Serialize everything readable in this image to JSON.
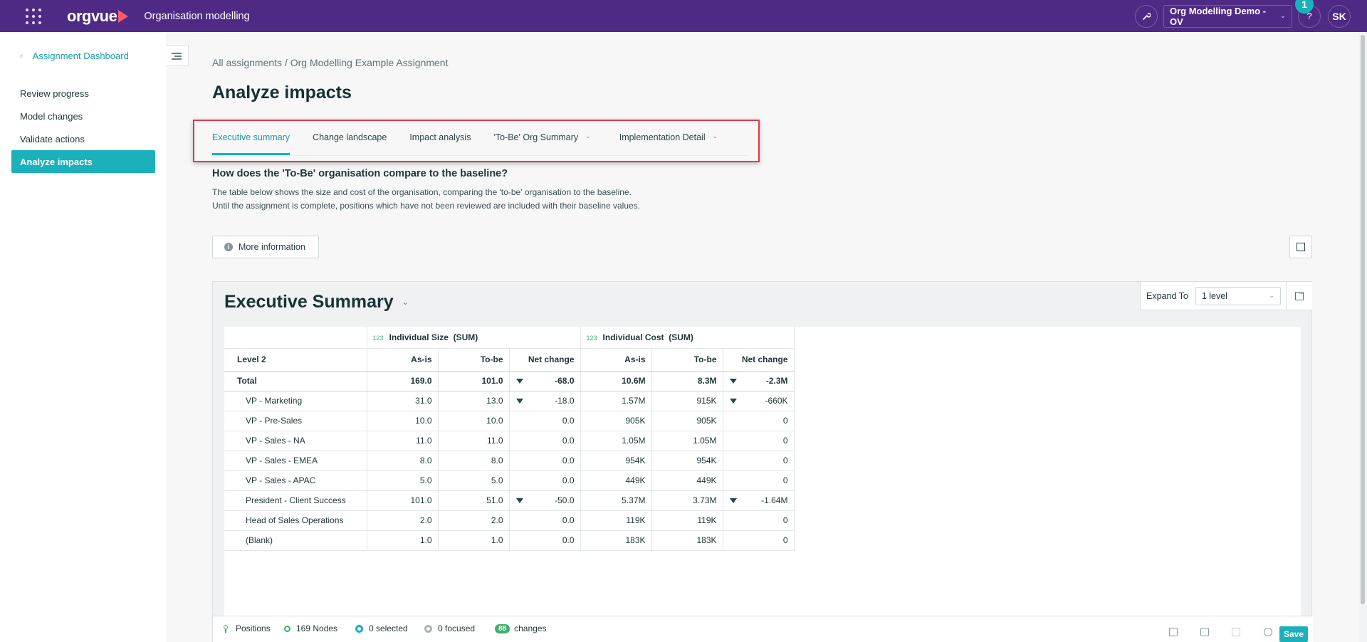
{
  "topbar": {
    "logo": "orgvue",
    "app_title": "Organisation modelling",
    "workspace": "Org Modelling Demo - OV",
    "notification_count": "1",
    "help": "?",
    "user_initials": "SK"
  },
  "sidebar": {
    "back_label": "Assignment Dashboard",
    "items": [
      {
        "label": "Review progress"
      },
      {
        "label": "Model changes"
      },
      {
        "label": "Validate actions"
      },
      {
        "label": "Analyze impacts"
      }
    ]
  },
  "main": {
    "breadcrumb": "All assignments / Org Modelling Example Assignment",
    "title": "Analyze impacts",
    "tabs": [
      {
        "label": "Executive summary"
      },
      {
        "label": "Change landscape"
      },
      {
        "label": "Impact analysis"
      },
      {
        "label": "'To-Be' Org Summary"
      },
      {
        "label": "Implementation Detail"
      }
    ],
    "question": "How does the 'To-Be' organisation compare to the baseline?",
    "desc_line1": "The table below shows the size and cost of the organisation, comparing the 'to-be' organisation to the baseline.",
    "desc_line2": "Until the assignment is complete, positions which have not been reviewed are included with their baseline values.",
    "more_info": "More information"
  },
  "summary": {
    "title": "Executive Summary",
    "expand_label": "Expand To",
    "expand_value": "1 level",
    "group_badge": "123",
    "group1": "Individual Size",
    "group2": "Individual Cost",
    "agg": "(SUM)",
    "row_header": "Level 2",
    "col_asis": "As-is",
    "col_tobe": "To-be",
    "col_net": "Net change",
    "rows": [
      {
        "name": "Total",
        "size_asis": "169.0",
        "size_tobe": "101.0",
        "size_net": "-68.0",
        "cost_asis": "10.6M",
        "cost_tobe": "8.3M",
        "cost_net": "-2.3M"
      },
      {
        "name": "VP - Marketing",
        "size_asis": "31.0",
        "size_tobe": "13.0",
        "size_net": "-18.0",
        "cost_asis": "1.57M",
        "cost_tobe": "915K",
        "cost_net": "-660K"
      },
      {
        "name": "VP - Pre-Sales",
        "size_asis": "10.0",
        "size_tobe": "10.0",
        "size_net": "0.0",
        "cost_asis": "905K",
        "cost_tobe": "905K",
        "cost_net": "0"
      },
      {
        "name": "VP - Sales - NA",
        "size_asis": "11.0",
        "size_tobe": "11.0",
        "size_net": "0.0",
        "cost_asis": "1.05M",
        "cost_tobe": "1.05M",
        "cost_net": "0"
      },
      {
        "name": "VP - Sales - EMEA",
        "size_asis": "8.0",
        "size_tobe": "8.0",
        "size_net": "0.0",
        "cost_asis": "954K",
        "cost_tobe": "954K",
        "cost_net": "0"
      },
      {
        "name": "VP - Sales - APAC",
        "size_asis": "5.0",
        "size_tobe": "5.0",
        "size_net": "0.0",
        "cost_asis": "449K",
        "cost_tobe": "449K",
        "cost_net": "0"
      },
      {
        "name": "President - Client Success",
        "size_asis": "101.0",
        "size_tobe": "51.0",
        "size_net": "-50.0",
        "cost_asis": "5.37M",
        "cost_tobe": "3.73M",
        "cost_net": "-1.64M"
      },
      {
        "name": "Head of Sales Operations",
        "size_asis": "2.0",
        "size_tobe": "2.0",
        "size_net": "0.0",
        "cost_asis": "119K",
        "cost_tobe": "119K",
        "cost_net": "0"
      },
      {
        "name": "(Blank)",
        "size_asis": "1.0",
        "size_tobe": "1.0",
        "size_net": "0.0",
        "cost_asis": "183K",
        "cost_tobe": "183K",
        "cost_net": "0"
      }
    ]
  },
  "status": {
    "positions": "Positions",
    "nodes": "169 Nodes",
    "selected": "0 selected",
    "focused": "0 focused",
    "changes_count": "88",
    "changes_label": "changes",
    "save": "Save"
  },
  "colors": {
    "topbar": "#4e2a84",
    "accent": "#1ab1bd",
    "highlight": "#e23b43",
    "positive_badge": "#3fae6b"
  }
}
